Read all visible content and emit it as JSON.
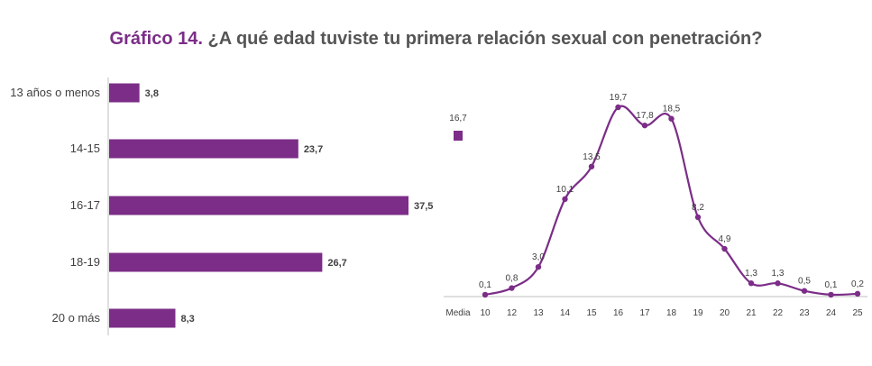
{
  "title": {
    "prefix": "Gráfico 14.",
    "text": "¿A qué edad tuviste tu primera relación sexual con penetración?"
  },
  "colors": {
    "accent": "#7b2d87",
    "title_text": "#555555",
    "axis": "#bfbfbf",
    "label": "#404040"
  },
  "chart_data": [
    {
      "type": "bar",
      "orientation": "horizontal",
      "categories": [
        "13 años o menos",
        "14-15",
        "16-17",
        "18-19",
        "20 o más"
      ],
      "values": [
        3.8,
        23.7,
        37.5,
        26.7,
        8.3
      ],
      "value_labels": [
        "3,8",
        "23,7",
        "37,5",
        "26,7",
        "8,3"
      ],
      "xlim": [
        0,
        37.5
      ],
      "grid": false
    },
    {
      "type": "line",
      "x": [
        "10",
        "12",
        "13",
        "14",
        "15",
        "16",
        "17",
        "18",
        "19",
        "20",
        "21",
        "22",
        "23",
        "24",
        "25"
      ],
      "values": [
        0.1,
        0.8,
        3.0,
        10.1,
        13.5,
        19.7,
        17.8,
        18.5,
        8.2,
        4.9,
        1.3,
        1.3,
        0.5,
        0.1,
        0.2
      ],
      "value_labels": [
        "0,1",
        "0,8",
        "3,0",
        "10,1",
        "13,5",
        "19,7",
        "17,8",
        "18,5",
        "8,2",
        "4,9",
        "1,3",
        "1,3",
        "0,5",
        "0,1",
        "0,2"
      ],
      "first_tick_label": "Media",
      "media": {
        "value": 16.7,
        "label": "16,7"
      },
      "ylim": [
        0,
        19.7
      ],
      "grid": false
    }
  ]
}
